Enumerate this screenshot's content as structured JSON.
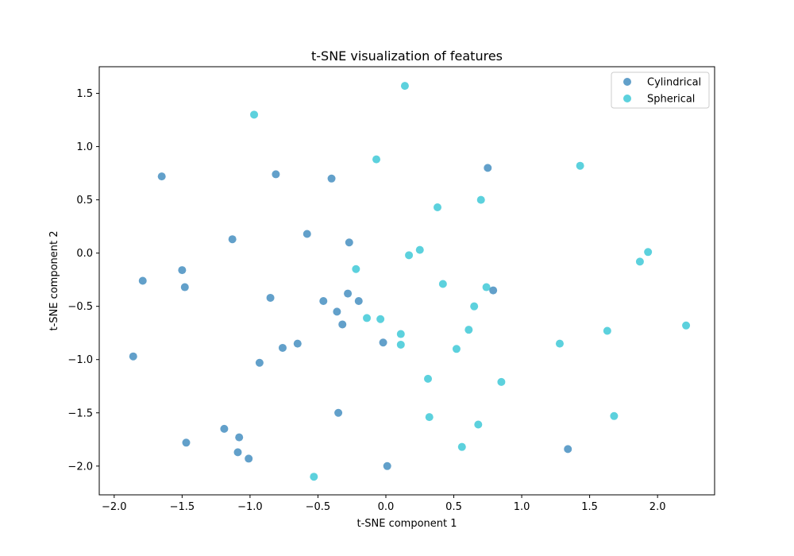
{
  "chart_data": {
    "type": "scatter",
    "title": "t-SNE visualization of features",
    "xlabel": "t-SNE component 1",
    "ylabel": "t-SNE component 2",
    "xlim": [
      -2.11,
      2.42
    ],
    "ylim": [
      -2.27,
      1.75
    ],
    "xticks": [
      -2.0,
      -1.5,
      -1.0,
      -0.5,
      0.0,
      0.5,
      1.0,
      1.5,
      2.0
    ],
    "xtick_labels": [
      "−2.0",
      "−1.5",
      "−1.0",
      "−0.5",
      "0.0",
      "0.5",
      "1.0",
      "1.5",
      "2.0"
    ],
    "yticks": [
      -2.0,
      -1.5,
      -1.0,
      -0.5,
      0.0,
      0.5,
      1.0,
      1.5
    ],
    "ytick_labels": [
      "−2.0",
      "−1.5",
      "−1.0",
      "−0.5",
      "0.0",
      "0.5",
      "1.0",
      "1.5"
    ],
    "grid": false,
    "legend_position": "top-right",
    "series": [
      {
        "name": "Cylindrical",
        "color": "#1f77b4",
        "points": [
          [
            -1.65,
            0.72
          ],
          [
            -0.81,
            0.74
          ],
          [
            -0.4,
            0.7
          ],
          [
            0.75,
            0.8
          ],
          [
            -1.13,
            0.13
          ],
          [
            -0.58,
            0.18
          ],
          [
            -0.27,
            0.1
          ],
          [
            -1.5,
            -0.16
          ],
          [
            -1.79,
            -0.26
          ],
          [
            -1.48,
            -0.32
          ],
          [
            -0.85,
            -0.42
          ],
          [
            -0.46,
            -0.45
          ],
          [
            -0.28,
            -0.38
          ],
          [
            -0.2,
            -0.45
          ],
          [
            -0.36,
            -0.55
          ],
          [
            -0.32,
            -0.67
          ],
          [
            0.79,
            -0.35
          ],
          [
            -0.76,
            -0.89
          ],
          [
            -0.65,
            -0.85
          ],
          [
            -0.02,
            -0.84
          ],
          [
            -1.86,
            -0.97
          ],
          [
            -0.93,
            -1.03
          ],
          [
            -0.35,
            -1.5
          ],
          [
            -1.19,
            -1.65
          ],
          [
            -1.08,
            -1.73
          ],
          [
            -1.47,
            -1.78
          ],
          [
            -1.09,
            -1.87
          ],
          [
            -1.01,
            -1.93
          ],
          [
            0.01,
            -2.0
          ],
          [
            1.34,
            -1.84
          ]
        ]
      },
      {
        "name": "Spherical",
        "color": "#17becf",
        "points": [
          [
            0.14,
            1.57
          ],
          [
            -0.97,
            1.3
          ],
          [
            -0.07,
            0.88
          ],
          [
            1.43,
            0.82
          ],
          [
            0.7,
            0.5
          ],
          [
            0.38,
            0.43
          ],
          [
            0.17,
            -0.02
          ],
          [
            0.25,
            0.03
          ],
          [
            1.93,
            0.01
          ],
          [
            1.87,
            -0.08
          ],
          [
            -0.22,
            -0.15
          ],
          [
            0.42,
            -0.29
          ],
          [
            0.74,
            -0.32
          ],
          [
            0.65,
            -0.5
          ],
          [
            -0.14,
            -0.61
          ],
          [
            -0.04,
            -0.62
          ],
          [
            0.61,
            -0.72
          ],
          [
            1.63,
            -0.73
          ],
          [
            2.21,
            -0.68
          ],
          [
            0.11,
            -0.76
          ],
          [
            0.11,
            -0.86
          ],
          [
            0.52,
            -0.9
          ],
          [
            1.28,
            -0.85
          ],
          [
            0.31,
            -1.18
          ],
          [
            0.85,
            -1.21
          ],
          [
            0.32,
            -1.54
          ],
          [
            0.68,
            -1.61
          ],
          [
            1.68,
            -1.53
          ],
          [
            0.56,
            -1.82
          ],
          [
            -0.53,
            -2.1
          ]
        ]
      }
    ]
  }
}
